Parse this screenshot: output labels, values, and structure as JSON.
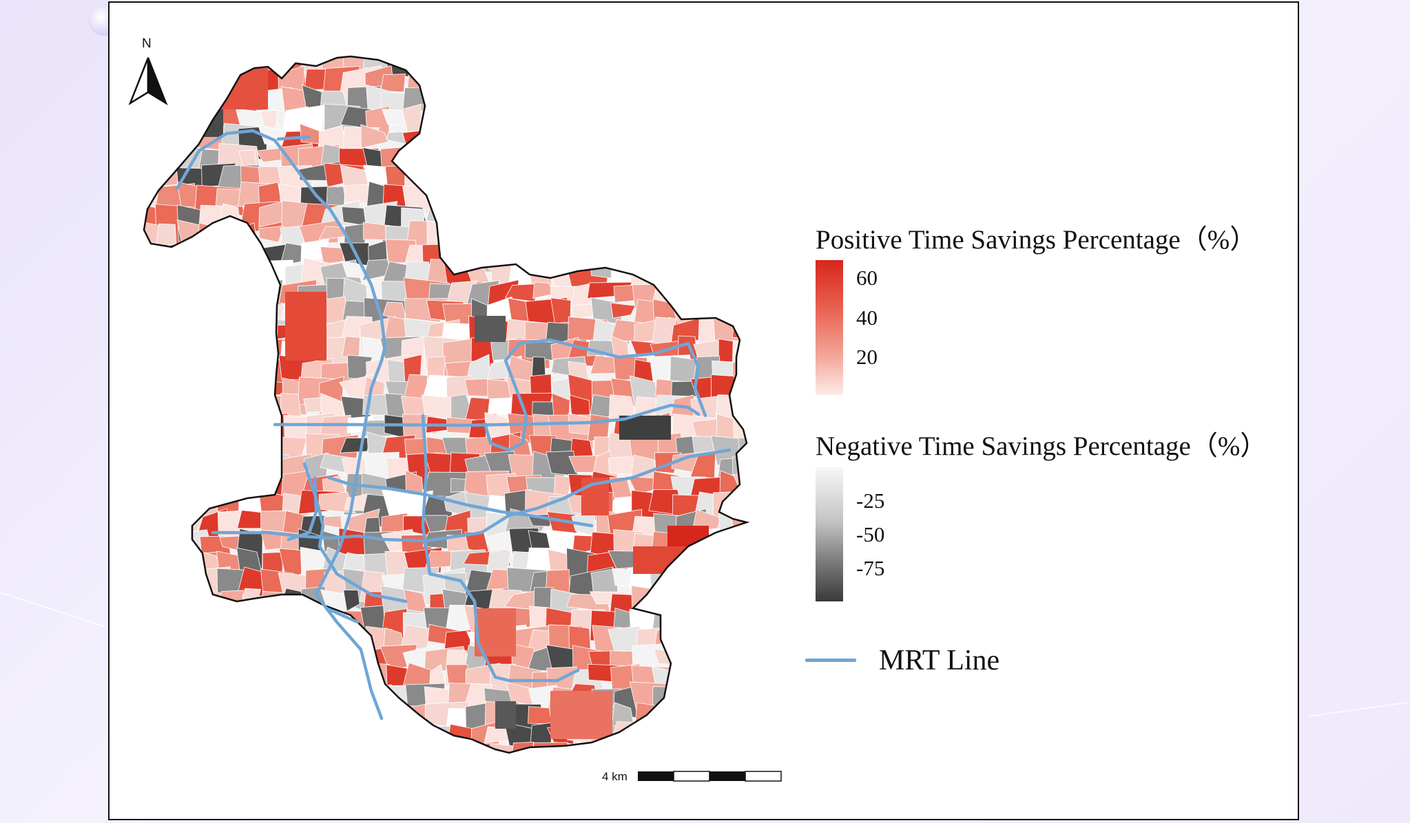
{
  "north_arrow": {
    "letter": "N",
    "icon": "north-arrow-icon"
  },
  "legend": {
    "positive": {
      "title": "Positive Time Savings Percentage（%）",
      "ticks": [
        "60",
        "40",
        "20"
      ],
      "colors": {
        "low": "#fbe6e3",
        "high": "#d7261c"
      }
    },
    "negative": {
      "title": "Negative Time Savings Percentage（%）",
      "ticks": [
        "-25",
        "-50",
        "-75"
      ],
      "colors": {
        "low": "#f3f3f3",
        "high": "#3a3a3a"
      }
    },
    "mrt": {
      "label": "MRT Line",
      "color": "#6fa6d6"
    }
  },
  "scale_bar": {
    "label": "4 km"
  },
  "colors": {
    "boundary": "#111111",
    "background": "#ffffff"
  }
}
